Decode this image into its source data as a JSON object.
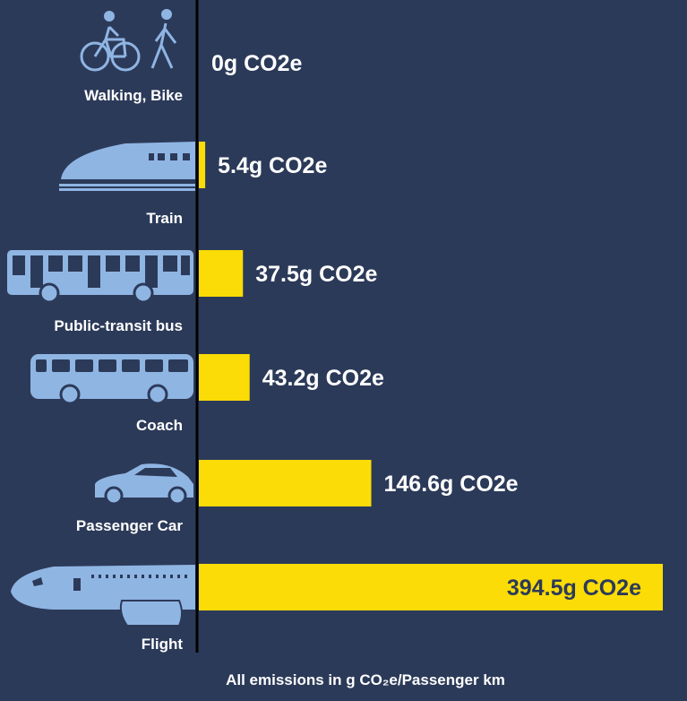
{
  "chart_data": {
    "type": "bar",
    "orientation": "horizontal",
    "categories": [
      "Walking, Bike",
      "Train",
      "Public-transit bus",
      "Coach",
      "Passenger Car",
      "Flight"
    ],
    "values": [
      0,
      5.4,
      37.5,
      43.2,
      146.6,
      394.5
    ],
    "value_labels": [
      "0g CO2e",
      "5.4g CO2e",
      "37.5g CO2e",
      "43.2g CO2e",
      "146.6g CO2e",
      "394.5g CO2e"
    ],
    "icons": [
      "bike-walk-icon",
      "train-icon",
      "bus-icon",
      "coach-icon",
      "car-icon",
      "airplane-icon"
    ],
    "xlim": [
      0,
      394.5
    ],
    "footnote": "All emissions in g CO₂e/Passenger km",
    "grid": false,
    "legend": "none"
  },
  "colors": {
    "background": "#2c3a59",
    "bar": "#fcdc06",
    "icon": "#8fb5e3",
    "text": "#ffffff",
    "inside_label": "#2c3a59",
    "axis": "#000000"
  }
}
